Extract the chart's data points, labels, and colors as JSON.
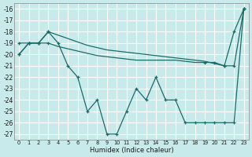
{
  "xlabel": "Humidex (Indice chaleur)",
  "bg_color": "#c8eaea",
  "grid_color": "#ffffff",
  "line_color": "#1a6b6b",
  "xlim": [
    -0.5,
    23.5
  ],
  "ylim": [
    -27.5,
    -15.5
  ],
  "xticks": [
    0,
    1,
    2,
    3,
    4,
    5,
    6,
    7,
    8,
    9,
    10,
    11,
    12,
    13,
    14,
    15,
    16,
    17,
    18,
    19,
    20,
    21,
    22,
    23
  ],
  "yticks": [
    -27,
    -26,
    -25,
    -24,
    -23,
    -22,
    -21,
    -20,
    -19,
    -18,
    -17,
    -16
  ],
  "line1_x": [
    0,
    1,
    2,
    3,
    4,
    5,
    6,
    7,
    8,
    9,
    10,
    11,
    12,
    13,
    14,
    15,
    16,
    17,
    18,
    19,
    20,
    21,
    22,
    23
  ],
  "line1_y": [
    -19.0,
    -19.0,
    -19.0,
    -18.0,
    -18.3,
    -18.6,
    -18.9,
    -19.2,
    -19.4,
    -19.6,
    -19.7,
    -19.8,
    -19.9,
    -20.0,
    -20.1,
    -20.2,
    -20.3,
    -20.4,
    -20.5,
    -20.6,
    -20.8,
    -21.0,
    -18.0,
    -16.0
  ],
  "line2_x": [
    0,
    1,
    2,
    3,
    4,
    5,
    6,
    7,
    8,
    9,
    10,
    11,
    12,
    13,
    14,
    15,
    16,
    17,
    18,
    19,
    20,
    21,
    22,
    23
  ],
  "line2_y": [
    -20.0,
    -19.0,
    -19.0,
    -19.0,
    -19.3,
    -19.5,
    -19.7,
    -19.9,
    -20.1,
    -20.2,
    -20.3,
    -20.4,
    -20.5,
    -20.5,
    -20.5,
    -20.5,
    -20.5,
    -20.6,
    -20.7,
    -20.7,
    -20.7,
    -21.0,
    -21.0,
    -16.0
  ],
  "line3_x": [
    0,
    1,
    2,
    3,
    4,
    5,
    6,
    7,
    8,
    9,
    10,
    11,
    12,
    13,
    14,
    15,
    16,
    17,
    18,
    19,
    20,
    21,
    22,
    23
  ],
  "line3_y": [
    -20.0,
    -19.0,
    -19.0,
    -18.0,
    -19.0,
    -21.0,
    -22.0,
    -25.0,
    -24.0,
    -27.0,
    -27.0,
    -25.0,
    -23.0,
    -24.0,
    -22.0,
    -24.0,
    -24.0,
    -26.0,
    -26.0,
    -26.0,
    -26.0,
    -26.0,
    -26.0,
    -16.0
  ],
  "line1_markers_x": [
    0,
    1,
    2,
    3,
    21,
    22,
    23
  ],
  "line1_markers_y": [
    -19.0,
    -19.0,
    -19.0,
    -18.0,
    -21.0,
    -18.0,
    -16.0
  ],
  "line2_markers_x": [
    0,
    1,
    2,
    3,
    19,
    20,
    21,
    22,
    23
  ],
  "line2_markers_y": [
    -20.0,
    -19.0,
    -19.0,
    -19.0,
    -20.7,
    -20.7,
    -21.0,
    -21.0,
    -16.0
  ],
  "line3_markers_x": [
    0,
    1,
    2,
    3,
    4,
    5,
    6,
    7,
    8,
    9,
    10,
    11,
    12,
    13,
    14,
    15,
    16,
    17,
    18,
    19,
    20,
    21,
    22,
    23
  ],
  "line3_markers_y": [
    -20.0,
    -19.0,
    -19.0,
    -18.0,
    -19.0,
    -21.0,
    -22.0,
    -25.0,
    -24.0,
    -27.0,
    -27.0,
    -25.0,
    -23.0,
    -24.0,
    -22.0,
    -24.0,
    -24.0,
    -26.0,
    -26.0,
    -26.0,
    -26.0,
    -26.0,
    -26.0,
    -16.0
  ]
}
